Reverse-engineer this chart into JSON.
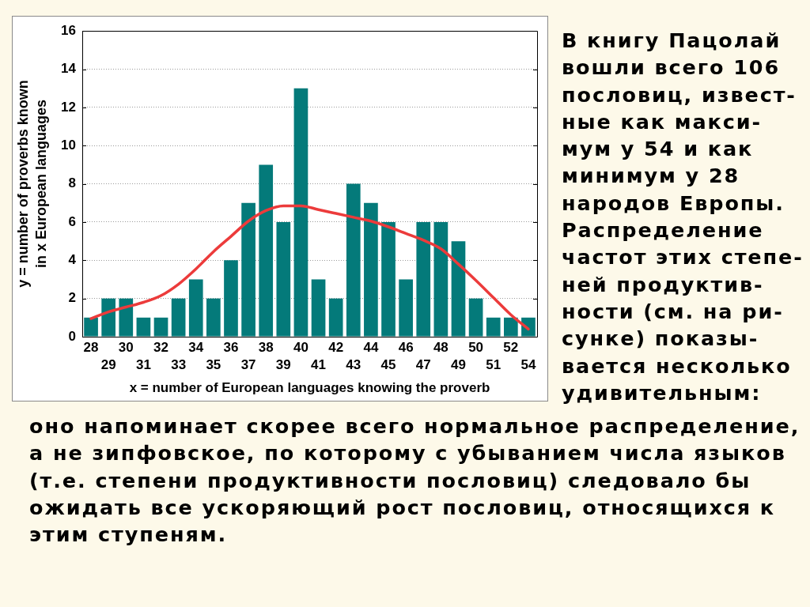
{
  "chart_data": {
    "type": "bar",
    "categories": [
      "28",
      "29",
      "30",
      "31",
      "32",
      "33",
      "34",
      "35",
      "36",
      "37",
      "38",
      "39",
      "40",
      "41",
      "42",
      "43",
      "44",
      "45",
      "46",
      "47",
      "48",
      "49",
      "50",
      "51",
      "52",
      "54"
    ],
    "series": [
      {
        "color": "#047a7a",
        "values": [
          1,
          2,
          2,
          1,
          1,
          2,
          3,
          2,
          4,
          7,
          9,
          6,
          13,
          3,
          2,
          8,
          7,
          6,
          3,
          6,
          6,
          5,
          2,
          1,
          1,
          1
        ]
      },
      {
        "type": "line",
        "color": "#ec3b3b",
        "values": [
          0.95,
          1.3,
          1.55,
          1.8,
          2.15,
          2.75,
          3.55,
          4.45,
          5.25,
          6.05,
          6.6,
          6.85,
          6.85,
          6.65,
          6.45,
          6.25,
          6.05,
          5.75,
          5.4,
          5.05,
          4.6,
          3.8,
          2.95,
          2.05,
          1.15,
          0.4
        ]
      }
    ],
    "xlabel": "x = number of European languages knowing the proverb",
    "ylabel": "y = number of proverbs known\nin x European languages",
    "ylim": [
      0,
      16
    ],
    "yticks": [
      0,
      2,
      4,
      6,
      8,
      10,
      12,
      14,
      16
    ],
    "grid": "y",
    "annotations": [
      "В книгу Пацолай\nвошли всего 106\nпословиц, извест-\nные как макси-\nмум у 54 и как\nминимум у 28\nнародов Европы.\nРаспределение\nчастот этих степе-\nней продуктив-\nности (см. на ри-\nсунке) показы-\nвается несколько\nудивительным:",
      "оно напоминает скорее всего нормальное распределение,\nа не зипфовское, по которому с убыванием числа языков\n(т.е. степени продуктивности пословиц) следовало бы\nожидать все ускоряющий рост пословиц, относящихся к\nэтим ступеням."
    ]
  }
}
